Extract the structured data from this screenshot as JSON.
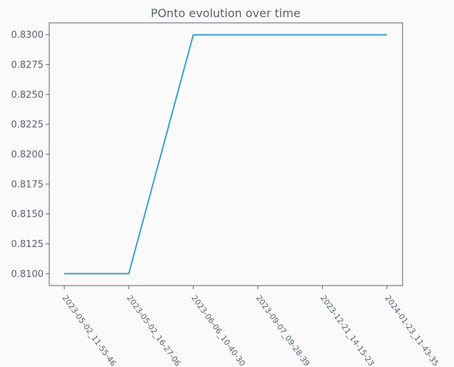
{
  "chart_data": {
    "type": "line",
    "title": "POnto evolution over time",
    "xlabel": "",
    "ylabel": "",
    "categories": [
      "2023-05-02_11-55-46",
      "2023-05-02_16-27-06",
      "2023-06-06_10-40-30",
      "2023-09-07_09-28-39",
      "2023-12-21_14-15-23",
      "2024-01-23_11-43-35"
    ],
    "series": [
      {
        "values": [
          0.81,
          0.81,
          0.83,
          0.83,
          0.83,
          0.83
        ],
        "color": "#3a9fd4"
      }
    ],
    "ylim": [
      0.809,
      0.831
    ],
    "yticks": [
      "0.8100",
      "0.8125",
      "0.8150",
      "0.8175",
      "0.8200",
      "0.8225",
      "0.8250",
      "0.8275",
      "0.8300"
    ],
    "grid": false,
    "legend": "none"
  }
}
